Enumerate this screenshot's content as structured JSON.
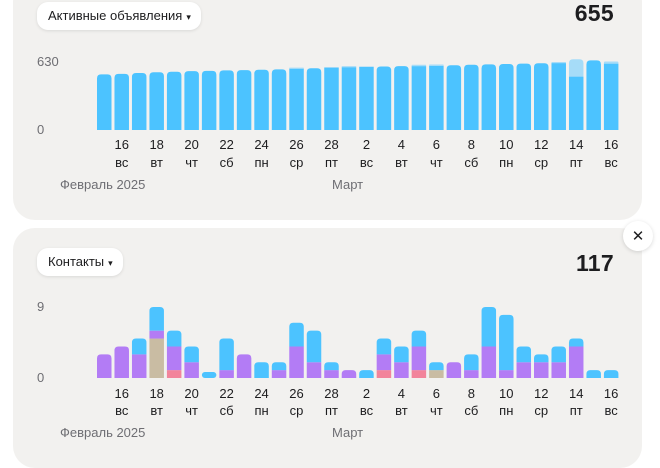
{
  "cards": [
    {
      "filter_label": "Активные объявления",
      "total": "655",
      "y_ticks": [
        "630",
        "0"
      ],
      "chart_data": {
        "type": "bar",
        "title": "Активные объявления",
        "x": [
          "15",
          "16",
          "17",
          "18",
          "19",
          "20",
          "21",
          "22",
          "23",
          "24",
          "25",
          "26",
          "27",
          "28",
          "1",
          "2",
          "3",
          "4",
          "5",
          "6",
          "7",
          "8",
          "9",
          "10",
          "11",
          "12",
          "13",
          "14",
          "15",
          "16"
        ],
        "x_ticks": [
          {
            "day": "16",
            "dow": "вс"
          },
          {
            "day": "18",
            "dow": "вт"
          },
          {
            "day": "20",
            "dow": "чт"
          },
          {
            "day": "22",
            "dow": "сб"
          },
          {
            "day": "24",
            "dow": "пн"
          },
          {
            "day": "26",
            "dow": "ср"
          },
          {
            "day": "28",
            "dow": "пт"
          },
          {
            "day": "2",
            "dow": "вс"
          },
          {
            "day": "4",
            "dow": "вт"
          },
          {
            "day": "6",
            "dow": "чт"
          },
          {
            "day": "8",
            "dow": "сб"
          },
          {
            "day": "10",
            "dow": "пн"
          },
          {
            "day": "12",
            "dow": "ср"
          },
          {
            "day": "14",
            "dow": "пт"
          },
          {
            "day": "16",
            "dow": "вс"
          }
        ],
        "month_labels": [
          "Февраль 2025",
          "Март"
        ],
        "ylim": [
          0,
          630
        ],
        "series": [
          {
            "color": "#4cc3ff",
            "values": [
              515,
              520,
              528,
              535,
              540,
              545,
              548,
              552,
              555,
              558,
              562,
              568,
              572,
              578,
              582,
              585,
              588,
              592,
              592,
              595,
              600,
              605,
              608,
              612,
              615,
              618,
              620,
              495,
              645,
              615
            ]
          },
          {
            "color": "#a6dcf8",
            "values": [
              0,
              0,
              0,
              0,
              0,
              0,
              0,
              0,
              0,
              0,
              0,
              10,
              0,
              5,
              10,
              5,
              0,
              0,
              12,
              12,
              0,
              0,
              0,
              0,
              0,
              0,
              10,
              160,
              0,
              20
            ]
          }
        ]
      }
    },
    {
      "filter_label": "Контакты",
      "total": "117",
      "y_ticks": [
        "9",
        "0"
      ],
      "chart_data": {
        "type": "bar",
        "title": "Контакты",
        "x": [
          "15",
          "16",
          "17",
          "18",
          "19",
          "20",
          "21",
          "22",
          "23",
          "24",
          "25",
          "26",
          "27",
          "28",
          "1",
          "2",
          "3",
          "4",
          "5",
          "6",
          "7",
          "8",
          "9",
          "10",
          "11",
          "12",
          "13",
          "14",
          "15",
          "16"
        ],
        "x_ticks": [
          {
            "day": "16",
            "dow": "вс"
          },
          {
            "day": "18",
            "dow": "вт"
          },
          {
            "day": "20",
            "dow": "чт"
          },
          {
            "day": "22",
            "dow": "сб"
          },
          {
            "day": "24",
            "dow": "пн"
          },
          {
            "day": "26",
            "dow": "ср"
          },
          {
            "day": "28",
            "dow": "пт"
          },
          {
            "day": "2",
            "dow": "вс"
          },
          {
            "day": "4",
            "dow": "вт"
          },
          {
            "day": "6",
            "dow": "чт"
          },
          {
            "day": "8",
            "dow": "сб"
          },
          {
            "day": "10",
            "dow": "пн"
          },
          {
            "day": "12",
            "dow": "ср"
          },
          {
            "day": "14",
            "dow": "пт"
          },
          {
            "day": "16",
            "dow": "вс"
          }
        ],
        "month_labels": [
          "Февраль 2025",
          "Март"
        ],
        "ylim": [
          0,
          9
        ],
        "series": [
          {
            "color": "#f2849b",
            "values": [
              0,
              0,
              0,
              0,
              1,
              0,
              0,
              0,
              0,
              0,
              0,
              0,
              0,
              0,
              0,
              0,
              1,
              0,
              1,
              0,
              0,
              0,
              0,
              0,
              0,
              0,
              0,
              0,
              0,
              0
            ]
          },
          {
            "color": "#c9bca3",
            "values": [
              0,
              0,
              0,
              5,
              0,
              0,
              0,
              0,
              0,
              0,
              0,
              0,
              0,
              0,
              0,
              0,
              0,
              0,
              0,
              1,
              0,
              0,
              0,
              0,
              0,
              0,
              0,
              0,
              0,
              0
            ]
          },
          {
            "color": "#b37cf5",
            "values": [
              3,
              4,
              3,
              1,
              3,
              2,
              0,
              1,
              3,
              0,
              1,
              4,
              2,
              1,
              1,
              0,
              2,
              2,
              3,
              0,
              2,
              1,
              4,
              1,
              2,
              2,
              2,
              4,
              0,
              0
            ]
          },
          {
            "color": "#4cc3ff",
            "values": [
              0,
              0,
              2,
              3,
              2,
              2,
              0,
              4,
              0,
              2,
              1,
              3,
              4,
              1,
              0,
              1,
              2,
              2,
              2,
              1,
              0,
              2,
              5,
              7,
              2,
              1,
              2,
              1,
              1,
              1
            ]
          }
        ]
      }
    }
  ],
  "close_label": "✕"
}
